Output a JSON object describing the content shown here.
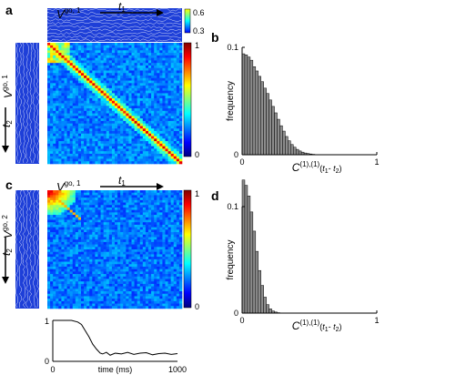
{
  "panels": {
    "a": "a",
    "b": "b",
    "c": "c",
    "d": "d"
  },
  "heatmap_labels": {
    "a_top_V": "V",
    "a_top_sup": "go, 1",
    "a_left_V": "V",
    "a_left_sup": "go, 1",
    "c_top_V": "V",
    "c_top_sup": "go, 1",
    "c_left_V": "V",
    "c_left_sup": "go, 2",
    "t1": "t",
    "t1_sub": "1",
    "t2": "t",
    "t2_sub": "2"
  },
  "colorbars": {
    "strip_top": "0.6",
    "strip_bottom": "0.3",
    "main_top": "1",
    "main_bottom": "0",
    "colors": [
      "#00007f",
      "#0000ff",
      "#0080ff",
      "#00ffff",
      "#80ff80",
      "#ffff00",
      "#ff8000",
      "#ff0000",
      "#7f0000"
    ]
  },
  "chart_data": [
    {
      "type": "bar",
      "panel": "b",
      "ylabel": "frequency",
      "xlabel": "C(1),(1)(t1- t2)",
      "xlabel_parts": {
        "C": "C",
        "sup": "(1),(1)",
        "open": "(",
        "t1": "t",
        "t1_sub": "1",
        "dash": "- ",
        "t2": "t",
        "t2_sub": "2",
        "close": ")"
      },
      "xlim": [
        0,
        1
      ],
      "ylim": [
        0,
        0.1
      ],
      "xticks": [
        "0",
        "1"
      ],
      "yticks": [
        "0",
        "0.1"
      ],
      "bin_width": 0.02,
      "values": [
        0.094,
        0.093,
        0.091,
        0.088,
        0.082,
        0.078,
        0.073,
        0.068,
        0.062,
        0.057,
        0.051,
        0.045,
        0.039,
        0.033,
        0.027,
        0.022,
        0.017,
        0.013,
        0.0095,
        0.007,
        0.005,
        0.0035,
        0.0024,
        0.0016,
        0.0011,
        0.0007,
        0.0004,
        0.0002,
        0.0001,
        5e-05
      ]
    },
    {
      "type": "bar",
      "panel": "d",
      "ylabel": "frequency",
      "xlabel": "C(1),(1)(t1- t2)",
      "xlabel_parts": {
        "C": "C",
        "sup": "(1),(1)",
        "open": "(",
        "t1": "t",
        "t1_sub": "1",
        "dash": "- ",
        "t2": "t",
        "t2_sub": "2",
        "close": ")"
      },
      "xlim": [
        0,
        1
      ],
      "ylim": [
        0,
        0.1
      ],
      "xticks": [
        "0",
        "1"
      ],
      "yticks": [
        "0",
        "0.1"
      ],
      "bin_width": 0.02,
      "values": [
        0.125,
        0.12,
        0.11,
        0.095,
        0.077,
        0.058,
        0.04,
        0.026,
        0.015,
        0.008,
        0.004,
        0.002,
        0.001,
        0.0004
      ]
    },
    {
      "type": "line",
      "panel": "c_timecourse",
      "xlabel": "time (ms)",
      "xlim": [
        0,
        1000
      ],
      "ylim": [
        0,
        1
      ],
      "xticks": [
        "0",
        "1000"
      ],
      "yticks": [
        "0",
        "1"
      ],
      "x": [
        0,
        50,
        100,
        150,
        200,
        230,
        260,
        290,
        320,
        350,
        380,
        400,
        430,
        460,
        500,
        550,
        600,
        650,
        700,
        750,
        800,
        850,
        900,
        950,
        1000
      ],
      "y": [
        1.0,
        1.0,
        1.0,
        1.0,
        0.96,
        0.9,
        0.75,
        0.6,
        0.42,
        0.3,
        0.2,
        0.18,
        0.22,
        0.15,
        0.2,
        0.18,
        0.22,
        0.17,
        0.2,
        0.21,
        0.16,
        0.19,
        0.2,
        0.17,
        0.19
      ]
    },
    {
      "type": "heatmap",
      "panel": "a",
      "colorbar_range": [
        0,
        1
      ],
      "strip_range": [
        0.3,
        0.6
      ],
      "structure": "strong diagonal with weak off-diagonal correlation"
    },
    {
      "type": "heatmap",
      "panel": "c",
      "colorbar_range": [
        0,
        1
      ],
      "structure": "high correlation only near early time origin"
    }
  ]
}
